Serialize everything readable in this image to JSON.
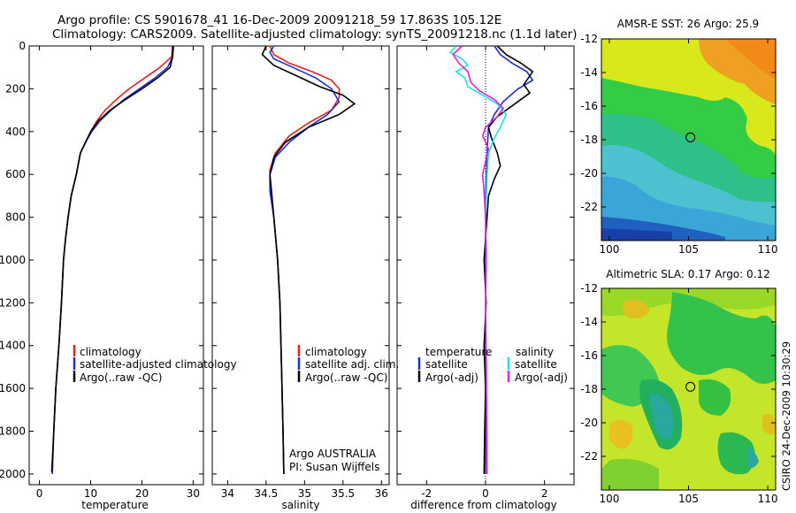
{
  "header": {
    "title_line1": "Argo profile: CS 5901678_41 16-Dec-2009 20091218_59 17.863S 105.12E",
    "title_line2": "Climatology: CARS2009. Satellite-adjusted climatology: synTS_20091218.nc (1.1d later)"
  },
  "side_text": "CSIRO 24-Dec-2009 10:30:29",
  "colors": {
    "red": "#e8201a",
    "blue": "#1b2fd6",
    "black": "#000000",
    "cyan": "#1fe0e0",
    "magenta": "#e020e0"
  },
  "chart_data": [
    {
      "type": "line",
      "id": "temperature",
      "xlabel": "temperature",
      "xlim": [
        -2,
        32
      ],
      "ylim": [
        2050,
        0
      ],
      "xticks": [
        0,
        10,
        20,
        30
      ],
      "yticks": [
        0,
        200,
        400,
        600,
        800,
        1000,
        1200,
        1400,
        1600,
        1800,
        2000
      ],
      "series": [
        {
          "name": "climatology",
          "color": "#e8201a",
          "points": [
            [
              26.0,
              0
            ],
            [
              25.8,
              50
            ],
            [
              23.5,
              100
            ],
            [
              20.5,
              150
            ],
            [
              17.5,
              200
            ],
            [
              15.0,
              250
            ],
            [
              12.8,
              300
            ],
            [
              11.2,
              350
            ],
            [
              10.0,
              400
            ],
            [
              9.0,
              450
            ],
            [
              8.0,
              500
            ],
            [
              7.2,
              600
            ],
            [
              6.2,
              700
            ],
            [
              5.6,
              800
            ],
            [
              5.1,
              900
            ],
            [
              4.7,
              1000
            ],
            [
              4.3,
              1200
            ],
            [
              3.8,
              1400
            ],
            [
              3.2,
              1600
            ],
            [
              2.8,
              1800
            ],
            [
              2.5,
              2000
            ]
          ]
        },
        {
          "name": "satellite-adjusted climatology",
          "color": "#1b2fd6",
          "points": [
            [
              26.2,
              0
            ],
            [
              26.0,
              50
            ],
            [
              25.0,
              100
            ],
            [
              22.5,
              150
            ],
            [
              19.5,
              200
            ],
            [
              16.5,
              250
            ],
            [
              14.0,
              300
            ],
            [
              11.8,
              350
            ],
            [
              10.2,
              400
            ],
            [
              9.0,
              450
            ],
            [
              8.0,
              500
            ],
            [
              7.2,
              600
            ],
            [
              6.2,
              700
            ],
            [
              5.6,
              800
            ],
            [
              5.1,
              900
            ],
            [
              4.7,
              1000
            ],
            [
              4.3,
              1200
            ],
            [
              3.8,
              1400
            ],
            [
              3.2,
              1600
            ],
            [
              2.8,
              1800
            ],
            [
              2.5,
              2000
            ]
          ]
        },
        {
          "name": "Argo(..raw -QC)",
          "color": "#000000",
          "points": [
            [
              26.0,
              0
            ],
            [
              26.0,
              50
            ],
            [
              25.5,
              100
            ],
            [
              23.0,
              150
            ],
            [
              20.0,
              200
            ],
            [
              16.8,
              250
            ],
            [
              13.8,
              300
            ],
            [
              11.5,
              350
            ],
            [
              10.0,
              400
            ],
            [
              9.0,
              450
            ],
            [
              8.0,
              500
            ],
            [
              7.2,
              600
            ],
            [
              6.2,
              700
            ],
            [
              5.6,
              800
            ],
            [
              5.1,
              900
            ],
            [
              4.7,
              1000
            ],
            [
              4.3,
              1200
            ],
            [
              3.8,
              1400
            ],
            [
              3.2,
              1600
            ],
            [
              2.8,
              1800
            ],
            [
              2.4,
              1990
            ]
          ]
        }
      ],
      "legend": [
        "climatology",
        "satellite-adjusted climatology",
        "Argo(..raw -QC)"
      ]
    },
    {
      "type": "line",
      "id": "salinity",
      "xlabel": "salinity",
      "xlim": [
        33.8,
        36.1
      ],
      "ylim": [
        2050,
        0
      ],
      "xticks": [
        34,
        34.5,
        35,
        35.5,
        36
      ],
      "yticks": [
        0,
        200,
        400,
        600,
        800,
        1000,
        1200,
        1400,
        1600,
        1800,
        2000
      ],
      "series": [
        {
          "name": "climatology",
          "color": "#e8201a",
          "points": [
            [
              34.55,
              0
            ],
            [
              34.6,
              40
            ],
            [
              34.8,
              80
            ],
            [
              35.1,
              120
            ],
            [
              35.35,
              160
            ],
            [
              35.45,
              200
            ],
            [
              35.45,
              240
            ],
            [
              35.35,
              300
            ],
            [
              35.05,
              360
            ],
            [
              34.8,
              420
            ],
            [
              34.62,
              500
            ],
            [
              34.55,
              580
            ],
            [
              34.55,
              650
            ],
            [
              34.6,
              800
            ],
            [
              34.65,
              1000
            ],
            [
              34.68,
              1200
            ],
            [
              34.7,
              1500
            ],
            [
              34.72,
              1800
            ],
            [
              34.73,
              2000
            ]
          ]
        },
        {
          "name": "satellite adj. clim.",
          "color": "#1b2fd6",
          "points": [
            [
              34.6,
              0
            ],
            [
              34.55,
              30
            ],
            [
              34.6,
              60
            ],
            [
              34.85,
              100
            ],
            [
              35.15,
              150
            ],
            [
              35.35,
              200
            ],
            [
              35.45,
              260
            ],
            [
              35.3,
              320
            ],
            [
              35.05,
              380
            ],
            [
              34.8,
              450
            ],
            [
              34.62,
              520
            ],
            [
              34.55,
              600
            ],
            [
              34.55,
              680
            ],
            [
              34.6,
              800
            ],
            [
              34.65,
              1000
            ],
            [
              34.68,
              1200
            ],
            [
              34.7,
              1500
            ],
            [
              34.72,
              1800
            ],
            [
              34.73,
              2000
            ]
          ]
        },
        {
          "name": "Argo(..raw -QC)",
          "color": "#000000",
          "points": [
            [
              34.5,
              0
            ],
            [
              34.45,
              40
            ],
            [
              34.6,
              90
            ],
            [
              34.9,
              140
            ],
            [
              35.2,
              190
            ],
            [
              35.5,
              230
            ],
            [
              35.65,
              270
            ],
            [
              35.45,
              320
            ],
            [
              35.05,
              380
            ],
            [
              34.75,
              450
            ],
            [
              34.6,
              520
            ],
            [
              34.55,
              600
            ],
            [
              34.57,
              680
            ],
            [
              34.6,
              800
            ],
            [
              34.65,
              1000
            ],
            [
              34.68,
              1200
            ],
            [
              34.7,
              1500
            ],
            [
              34.72,
              1800
            ],
            [
              34.73,
              2000
            ]
          ]
        }
      ],
      "legend": [
        "climatology",
        "satellite adj. clim.",
        "Argo(..raw -QC)"
      ],
      "annotation_line1": "Argo AUSTRALIA",
      "annotation_line2": "PI: Susan Wijffels"
    },
    {
      "type": "line",
      "id": "difference",
      "xlabel": "difference from climatology",
      "xlim": [
        -3,
        3
      ],
      "ylim": [
        2050,
        0
      ],
      "xticks": [
        -2,
        0,
        2
      ],
      "yticks": [
        0,
        200,
        400,
        600,
        800,
        1000,
        1200,
        1400,
        1600,
        1800,
        2000
      ],
      "zero_line_x": 0,
      "series": [
        {
          "name": "temperature satellite",
          "color": "#1b2fd6",
          "points": [
            [
              0.3,
              0
            ],
            [
              0.5,
              40
            ],
            [
              0.9,
              80
            ],
            [
              1.4,
              120
            ],
            [
              1.6,
              160
            ],
            [
              1.1,
              200
            ],
            [
              0.6,
              260
            ],
            [
              0.3,
              320
            ],
            [
              0.1,
              380
            ],
            [
              0.05,
              500
            ],
            [
              0.0,
              700
            ],
            [
              0.0,
              2000
            ]
          ]
        },
        {
          "name": "temperature Argo(-adj)",
          "color": "#000000",
          "points": [
            [
              0.4,
              0
            ],
            [
              0.7,
              40
            ],
            [
              1.2,
              80
            ],
            [
              1.6,
              120
            ],
            [
              1.3,
              180
            ],
            [
              1.5,
              220
            ],
            [
              0.9,
              280
            ],
            [
              0.4,
              330
            ],
            [
              0.1,
              380
            ],
            [
              0.2,
              430
            ],
            [
              0.4,
              500
            ],
            [
              0.5,
              560
            ],
            [
              0.3,
              620
            ],
            [
              0.1,
              700
            ],
            [
              0.05,
              800
            ],
            [
              -0.05,
              1000
            ],
            [
              0.02,
              1200
            ],
            [
              -0.05,
              1400
            ],
            [
              0.0,
              1600
            ],
            [
              -0.03,
              1800
            ],
            [
              -0.05,
              2000
            ]
          ]
        },
        {
          "name": "salinity satellite",
          "color": "#1fe0e0",
          "points": [
            [
              -1.0,
              0
            ],
            [
              -1.2,
              30
            ],
            [
              -0.8,
              60
            ],
            [
              -0.6,
              90
            ],
            [
              -1.0,
              120
            ],
            [
              -0.7,
              150
            ],
            [
              -0.6,
              190
            ],
            [
              -0.1,
              230
            ],
            [
              0.4,
              270
            ],
            [
              0.7,
              320
            ],
            [
              0.5,
              380
            ],
            [
              0.3,
              430
            ],
            [
              0.1,
              500
            ],
            [
              0.05,
              600
            ],
            [
              0.0,
              800
            ],
            [
              0.02,
              1000
            ],
            [
              0.0,
              1200
            ],
            [
              0.03,
              1500
            ],
            [
              0.05,
              1800
            ],
            [
              0.05,
              2000
            ]
          ]
        },
        {
          "name": "salinity Argo(-adj)",
          "color": "#e020e0",
          "points": [
            [
              -0.8,
              0
            ],
            [
              -1.1,
              40
            ],
            [
              -0.9,
              80
            ],
            [
              -0.6,
              120
            ],
            [
              -0.5,
              170
            ],
            [
              -0.2,
              210
            ],
            [
              0.3,
              250
            ],
            [
              0.6,
              290
            ],
            [
              0.4,
              330
            ],
            [
              0.0,
              380
            ],
            [
              -0.1,
              420
            ],
            [
              0.1,
              480
            ],
            [
              0.0,
              540
            ],
            [
              -0.1,
              600
            ],
            [
              -0.05,
              680
            ],
            [
              0.0,
              800
            ],
            [
              0.02,
              1000
            ],
            [
              0.0,
              1200
            ],
            [
              0.02,
              1500
            ],
            [
              0.04,
              1800
            ],
            [
              0.05,
              2000
            ]
          ]
        }
      ],
      "legend_headers": [
        "temperature",
        "salinity"
      ],
      "legend_left": [
        "satellite",
        "Argo(-adj)"
      ],
      "legend_right": [
        "satellite",
        "Argo(-adj)"
      ]
    },
    {
      "type": "heatmap",
      "id": "sst_map",
      "title": "AMSR-E SST: 26 Argo: 25.9",
      "xlim": [
        99.5,
        110.5
      ],
      "ylim": [
        -24,
        -12
      ],
      "xticks": [
        100,
        105,
        110
      ],
      "yticks": [
        -12,
        -14,
        -16,
        -18,
        -20,
        -22
      ],
      "marker": [
        105.12,
        -17.86
      ]
    },
    {
      "type": "heatmap",
      "id": "sla_map",
      "title": "Altimetric SLA: 0.17 Argo: 0.12",
      "xlim": [
        99.5,
        110.5
      ],
      "ylim": [
        -24,
        -12
      ],
      "xticks": [
        100,
        105,
        110
      ],
      "yticks": [
        -12,
        -14,
        -16,
        -18,
        -20,
        -22
      ],
      "marker": [
        105.12,
        -17.86
      ]
    }
  ]
}
